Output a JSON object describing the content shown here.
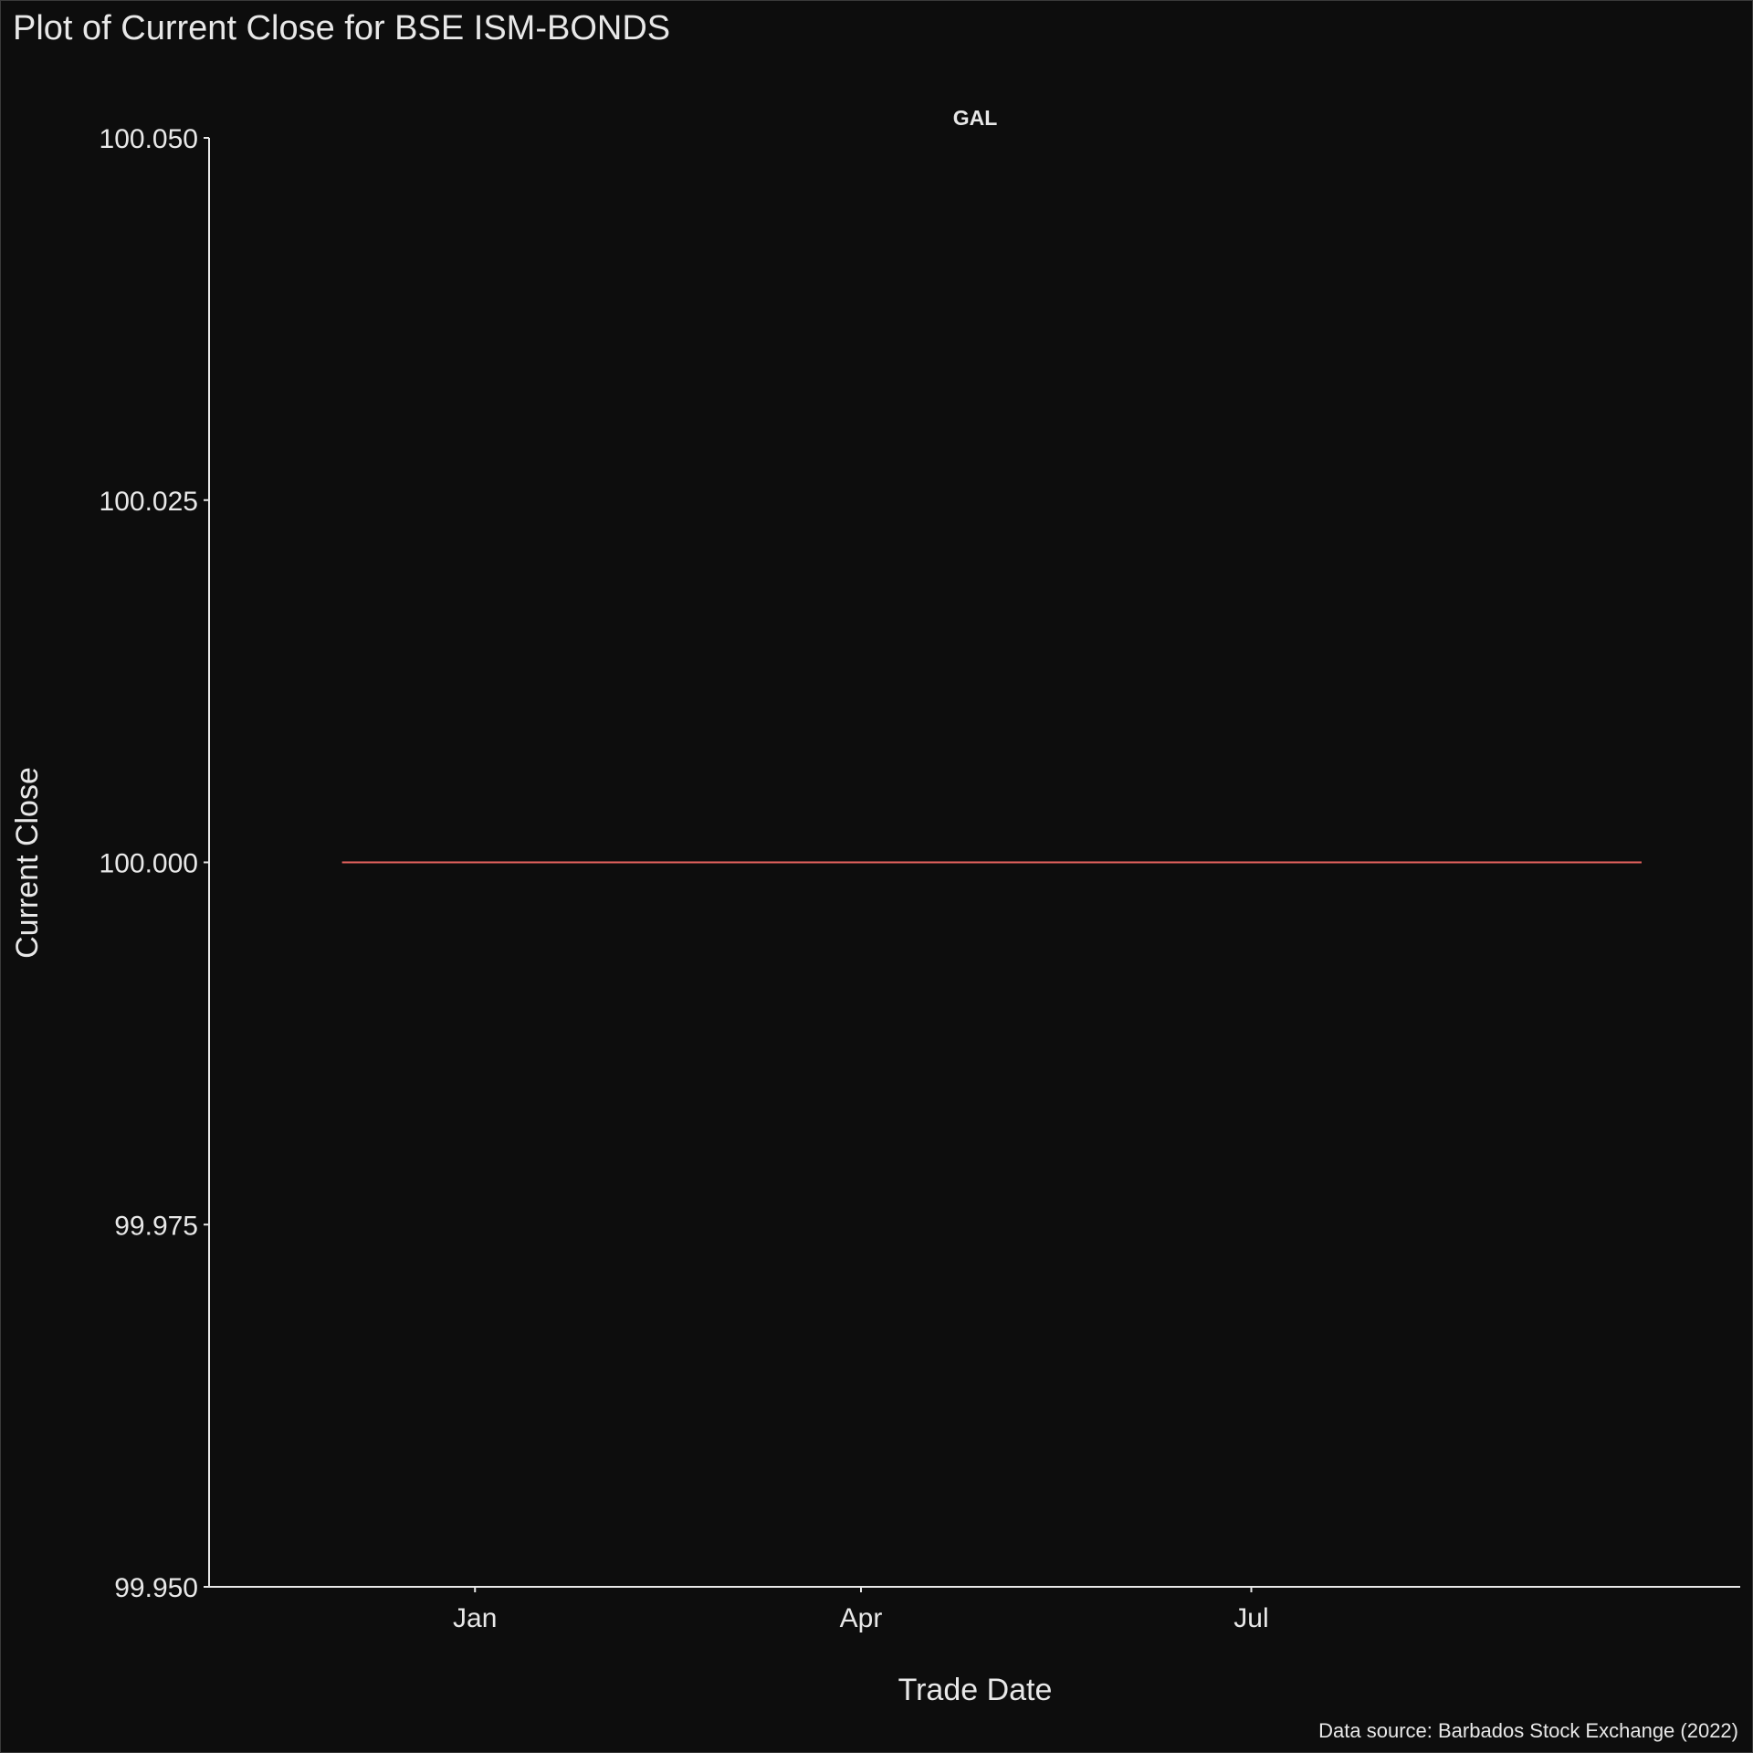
{
  "chart_data": {
    "type": "line",
    "title": "Plot of Current Close for BSE ISM-BONDS",
    "panel_label": "GAL",
    "xlabel": "Trade Date",
    "ylabel": "Current Close",
    "caption": "Data source: Barbados Stock Exchange (2022)",
    "x_ticks": [
      "Jan",
      "Apr",
      "Jul"
    ],
    "x_tick_dates": [
      "2022-01-01",
      "2022-04-01",
      "2022-07-01"
    ],
    "x_range": [
      "2021-10-31",
      "2022-10-23"
    ],
    "y_ticks": [
      "99.950",
      "99.975",
      "100.000",
      "100.025",
      "100.050"
    ],
    "ylim": [
      99.95,
      100.05
    ],
    "grid": false,
    "series": [
      {
        "color": "#e8635f",
        "x": [
          "2021-12-01",
          "2022-09-30"
        ],
        "y": [
          100.0,
          100.0
        ]
      }
    ]
  }
}
